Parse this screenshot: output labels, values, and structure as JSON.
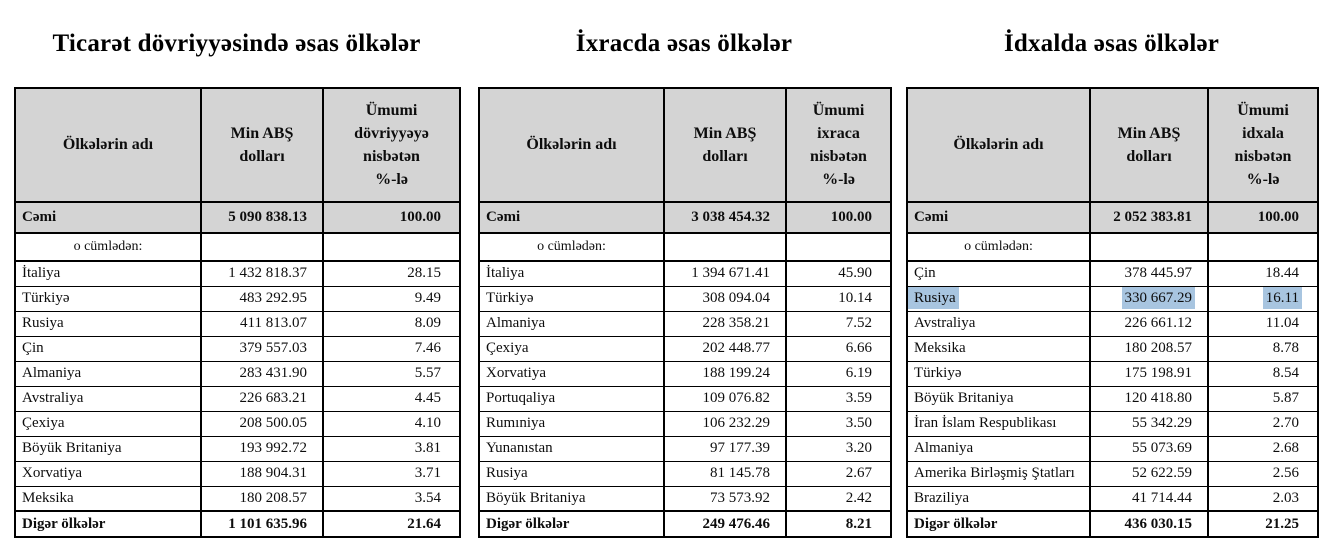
{
  "colors": {
    "header_bg": "#d4d4d4",
    "selection_highlight": "#a8c5e0",
    "border": "#000000"
  },
  "tables": [
    {
      "title": "Ticarət dövriyyəsində əsas ölkələr",
      "col_headers": [
        "Ölkələrin adı",
        "Min ABŞ\ndolları",
        "Ümumi\ndövriyyəyə\nnisbətən\n%-lə"
      ],
      "total": {
        "label": "Cəmi",
        "value": "5 090 838.13",
        "percent": "100.00"
      },
      "subheading": "o cümlədən:",
      "rows": [
        {
          "country": "İtaliya",
          "value": "1 432 818.37",
          "percent": "28.15"
        },
        {
          "country": "Türkiyə",
          "value": "483 292.95",
          "percent": "9.49"
        },
        {
          "country": "Rusiya",
          "value": "411 813.07",
          "percent": "8.09"
        },
        {
          "country": "Çin",
          "value": "379 557.03",
          "percent": "7.46"
        },
        {
          "country": "Almaniya",
          "value": "283 431.90",
          "percent": "5.57"
        },
        {
          "country": "Avstraliya",
          "value": "226 683.21",
          "percent": "4.45"
        },
        {
          "country": "Çexiya",
          "value": "208 500.05",
          "percent": "4.10"
        },
        {
          "country": "Böyük Britaniya",
          "value": "193 992.72",
          "percent": "3.81"
        },
        {
          "country": "Xorvatiya",
          "value": "188 904.31",
          "percent": "3.71"
        },
        {
          "country": "Meksika",
          "value": "180 208.57",
          "percent": "3.54"
        }
      ],
      "footer": {
        "label": "Digər ölkələr",
        "value": "1 101 635.96",
        "percent": "21.64"
      }
    },
    {
      "title": "İxracda əsas ölkələr",
      "col_headers": [
        "Ölkələrin adı",
        "Min ABŞ\ndolları",
        "Ümumi\nixraca\nnisbətən\n%-lə"
      ],
      "total": {
        "label": "Cəmi",
        "value": "3 038 454.32",
        "percent": "100.00"
      },
      "subheading": "o cümlədən:",
      "rows": [
        {
          "country": "İtaliya",
          "value": "1 394 671.41",
          "percent": "45.90"
        },
        {
          "country": "Türkiyə",
          "value": "308 094.04",
          "percent": "10.14"
        },
        {
          "country": "Almaniya",
          "value": "228 358.21",
          "percent": "7.52"
        },
        {
          "country": "Çexiya",
          "value": "202 448.77",
          "percent": "6.66"
        },
        {
          "country": "Xorvatiya",
          "value": "188 199.24",
          "percent": "6.19"
        },
        {
          "country": "Portuqaliya",
          "value": "109 076.82",
          "percent": "3.59"
        },
        {
          "country": "Rumıniya",
          "value": "106 232.29",
          "percent": "3.50"
        },
        {
          "country": "Yunanıstan",
          "value": "97 177.39",
          "percent": "3.20"
        },
        {
          "country": "Rusiya",
          "value": "81 145.78",
          "percent": "2.67"
        },
        {
          "country": "Böyük Britaniya",
          "value": "73 573.92",
          "percent": "2.42"
        }
      ],
      "footer": {
        "label": "Digər ölkələr",
        "value": "249 476.46",
        "percent": "8.21"
      }
    },
    {
      "title": "İdxalda əsas ölkələr",
      "col_headers": [
        "Ölkələrin adı",
        "Min ABŞ\ndolları",
        "Ümumi\nidxala\nnisbətən\n%-lə"
      ],
      "total": {
        "label": "Cəmi",
        "value": "2 052 383.81",
        "percent": "100.00"
      },
      "subheading": "o cümlədən:",
      "rows": [
        {
          "country": "Çin",
          "value": "378 445.97",
          "percent": "18.44"
        },
        {
          "country": "Rusiya",
          "value": "330 667.29",
          "percent": "16.11",
          "highlight": true
        },
        {
          "country": "Avstraliya",
          "value": "226 661.12",
          "percent": "11.04"
        },
        {
          "country": "Meksika",
          "value": "180 208.57",
          "percent": "8.78"
        },
        {
          "country": "Türkiyə",
          "value": "175 198.91",
          "percent": "8.54"
        },
        {
          "country": "Böyük Britaniya",
          "value": "120 418.80",
          "percent": "5.87"
        },
        {
          "country": "İran İslam Respublikası",
          "value": "55 342.29",
          "percent": "2.70"
        },
        {
          "country": "Almaniya",
          "value": "55 073.69",
          "percent": "2.68"
        },
        {
          "country": "Amerika Birləşmiş Ştatları",
          "value": "52 622.59",
          "percent": "2.56"
        },
        {
          "country": "Braziliya",
          "value": "41 714.44",
          "percent": "2.03"
        }
      ],
      "footer": {
        "label": "Digər ölkələr",
        "value": "436 030.15",
        "percent": "21.25"
      }
    }
  ]
}
